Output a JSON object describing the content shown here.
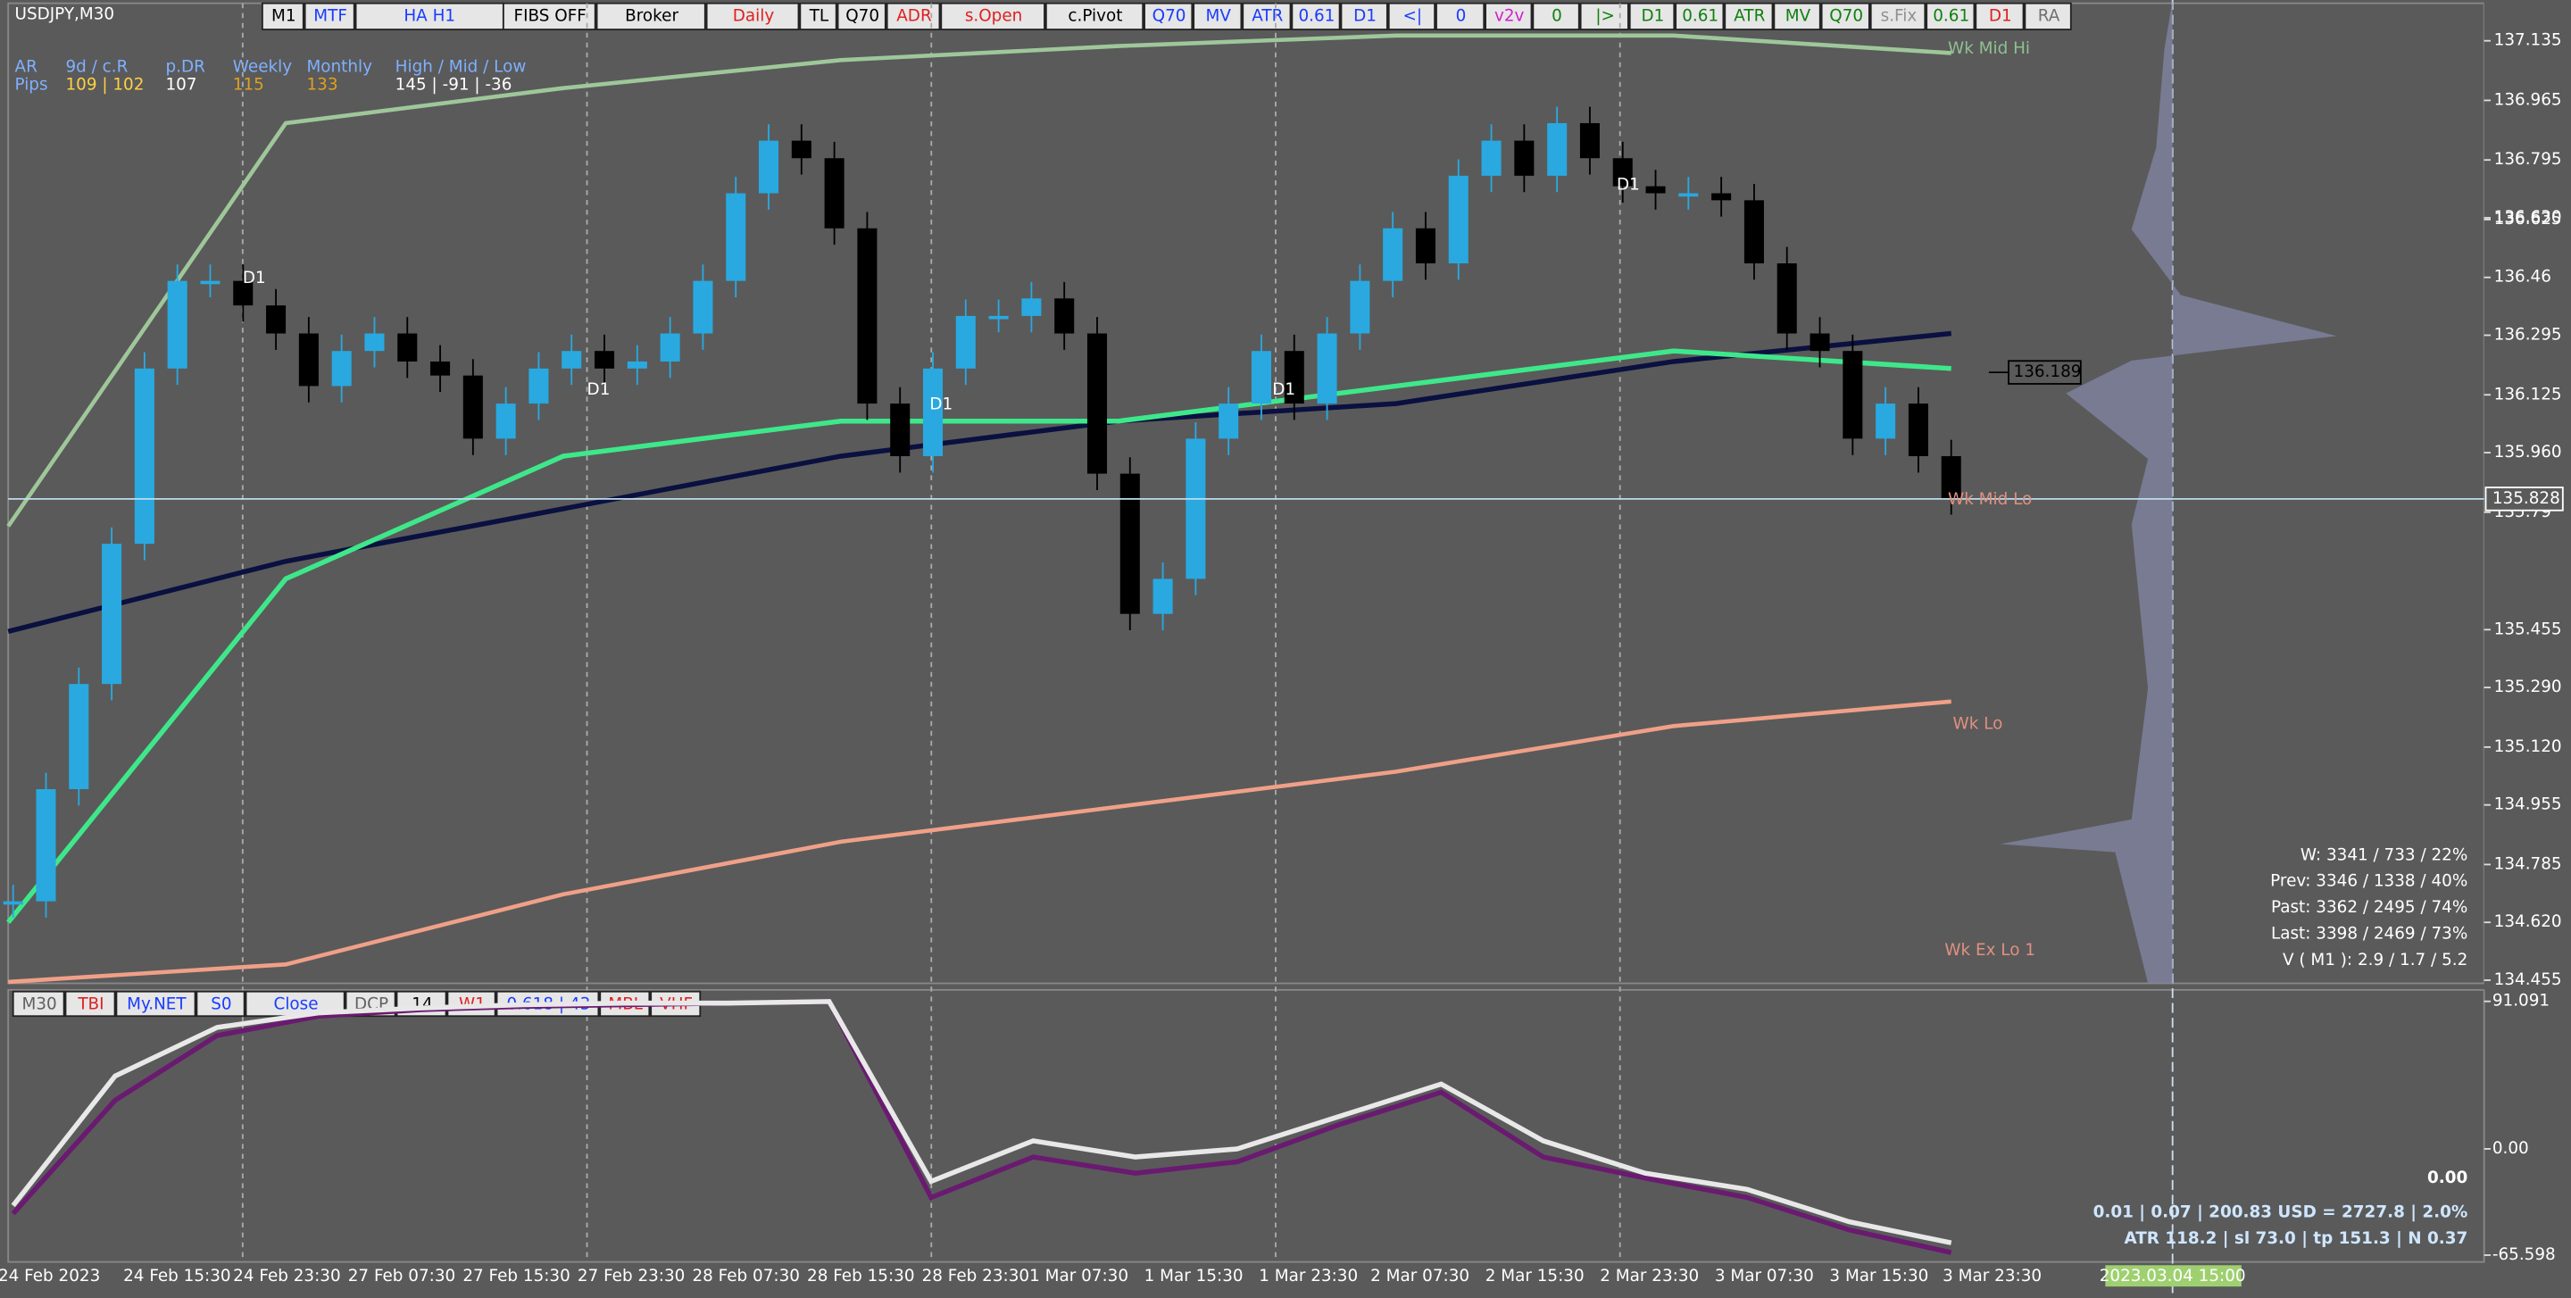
{
  "symbol": "USDJPY,M30",
  "toolbar": [
    {
      "label": "M1",
      "color": "#000000"
    },
    {
      "label": "MTF",
      "color": "#1a3cff"
    },
    {
      "label": "HA H1",
      "color": "#1a3cff"
    },
    {
      "label": "FIBS OFF",
      "color": "#000000"
    },
    {
      "label": "Broker",
      "color": "#000000"
    },
    {
      "label": "Daily",
      "color": "#e02020"
    },
    {
      "label": "TL",
      "color": "#000000"
    },
    {
      "label": "Q70",
      "color": "#000000"
    },
    {
      "label": "ADR",
      "color": "#e02020"
    },
    {
      "label": "s.Open",
      "color": "#e02020"
    },
    {
      "label": "c.Pivot",
      "color": "#000000"
    },
    {
      "label": "Q70",
      "color": "#1a3cff"
    },
    {
      "label": "MV",
      "color": "#1a3cff"
    },
    {
      "label": "ATR",
      "color": "#1a3cff"
    },
    {
      "label": "0.61",
      "color": "#1a3cff"
    },
    {
      "label": "D1",
      "color": "#1a3cff"
    },
    {
      "label": "<|",
      "color": "#1a3cff"
    },
    {
      "label": "0",
      "color": "#1a3cff"
    },
    {
      "label": "v2v",
      "color": "#d020d0"
    },
    {
      "label": "0",
      "color": "#108010"
    },
    {
      "label": "|>",
      "color": "#108010"
    },
    {
      "label": "D1",
      "color": "#108010"
    },
    {
      "label": "0.61",
      "color": "#108010"
    },
    {
      "label": "ATR",
      "color": "#108010"
    },
    {
      "label": "MV",
      "color": "#108010"
    },
    {
      "label": "Q70",
      "color": "#108010"
    },
    {
      "label": "s.Fix",
      "color": "#909090"
    },
    {
      "label": "0.61",
      "color": "#108010"
    },
    {
      "label": "D1",
      "color": "#e02020"
    },
    {
      "label": "RA",
      "color": "#707070"
    }
  ],
  "info": {
    "header": [
      "AR",
      "9d / c.R",
      "p.DR",
      "Weekly",
      "Monthly",
      "High / Mid / Low"
    ],
    "row": [
      "Pips",
      "109 | 102",
      "107",
      "115",
      "133",
      "145 | -91 | -36"
    ]
  },
  "price_chart": {
    "ylim": [
      134.446,
      137.242
    ],
    "yticks": [
      137.135,
      136.965,
      136.795,
      {
        "value": 136.63,
        "label": "136.630"
      },
      136.46,
      136.295,
      136.125,
      {
        "value": 135.96,
        "label": "135.960"
      },
      135.79,
      136.625,
      135.455,
      {
        "value": 135.29,
        "label": "135.290"
      },
      {
        "value": 135.12,
        "label": "135.120"
      },
      134.955,
      134.785,
      {
        "value": 134.62,
        "label": "134.620"
      },
      134.455
    ],
    "close": [
      134.68,
      135.0,
      135.3,
      135.7,
      136.2,
      136.45,
      136.45,
      136.38,
      136.3,
      136.15,
      136.25,
      136.3,
      136.22,
      136.18,
      136.0,
      136.1,
      136.2,
      136.25,
      136.2,
      136.22,
      136.3,
      136.45,
      136.7,
      136.85,
      136.8,
      136.6,
      136.1,
      135.95,
      136.2,
      136.35,
      136.35,
      136.4,
      136.3,
      135.9,
      135.5,
      135.6,
      136.0,
      136.1,
      136.25,
      136.1,
      136.3,
      136.45,
      136.6,
      136.5,
      136.75,
      136.85,
      136.75,
      136.9,
      136.8,
      136.72,
      136.7,
      136.7,
      136.68,
      136.5,
      136.3,
      136.25,
      136.0,
      136.1,
      135.95,
      135.83
    ],
    "lines": [
      {
        "color": "#9fc79a",
        "values": [
          135.75,
          136.9,
          137.0,
          137.08,
          137.12,
          137.15,
          137.15,
          137.1
        ]
      },
      {
        "color": "#f0a088",
        "values": [
          134.45,
          134.5,
          134.7,
          134.85,
          134.95,
          135.05,
          135.18,
          135.25
        ]
      },
      {
        "color": "#0a1040",
        "values": [
          135.45,
          135.65,
          135.8,
          135.95,
          136.05,
          136.1,
          136.22,
          136.3
        ]
      },
      {
        "color": "#3ee88a",
        "values": [
          134.62,
          135.6,
          135.95,
          136.05,
          136.05,
          136.15,
          136.25,
          136.2
        ]
      }
    ],
    "current_price": 135.828,
    "marker_price": 136.189,
    "level_labels": [
      "Wk Mid Hi",
      "Wk Mid Lo",
      "Wk Lo",
      "Wk Ex Lo 1"
    ],
    "d1_label": "D1",
    "stats": [
      "W: 3341 / 733 / 22%",
      "Prev: 3346 / 1338 / 40%",
      "Past: 3362 / 2495 / 74%",
      "Last: 3398 / 2469 / 73%",
      "V ( M1 ): 2.9 / 1.7 / 5.2"
    ]
  },
  "oscillator": {
    "toolbar": [
      {
        "label": "M30",
        "color": "#606060"
      },
      {
        "label": "TBI",
        "color": "#e02020"
      },
      {
        "label": "My.NET",
        "color": "#1a3cff"
      },
      {
        "label": "S0",
        "color": "#1a3cff"
      },
      {
        "label": "Close",
        "color": "#1a3cff"
      },
      {
        "label": "DCP",
        "color": "#606060"
      },
      {
        "label": "14",
        "color": "#000000"
      },
      {
        "label": "W1",
        "color": "#e02020"
      },
      {
        "label": "0.618 | 43",
        "color": "#1a3cff"
      },
      {
        "label": "MBL",
        "color": "#e02020"
      },
      {
        "label": "VHF",
        "color": "#e02020"
      }
    ],
    "ylim": [
      -69.8,
      97.16
    ],
    "yticks": [
      91.091,
      {
        "value": 0,
        "label": "0.00"
      },
      -65.598
    ],
    "series": [
      {
        "color": "#e8e8e8",
        "values": [
          -35,
          45,
          75,
          84,
          87,
          89,
          90,
          90,
          91,
          -20,
          5,
          -5,
          0,
          20,
          40,
          5,
          -15,
          -25,
          -45,
          -58
        ]
      },
      {
        "color": "#6a1a70",
        "values": [
          -40,
          30,
          70,
          82,
          86,
          88,
          89,
          90,
          91,
          -30,
          -5,
          -15,
          -8,
          15,
          35,
          -5,
          -18,
          -30,
          -50,
          -64
        ]
      }
    ],
    "big_value": "0.00",
    "line1": "0.01  |  0.07  |  200.83 USD = 2727.8  |  2.0%",
    "line2": "ATR 118.2  |  sl 73.0  |  tp 151.3  |  N 0.37"
  },
  "x_labels": [
    "24 Feb 2023",
    "24 Feb 15:30",
    "24 Feb 23:30",
    "27 Feb 07:30",
    "27 Feb 15:30",
    "27 Feb 23:30",
    "28 Feb 07:30",
    "28 Feb 15:30",
    "28 Feb 23:30",
    "1 Mar 07:30",
    "1 Mar 15:30",
    "1 Mar 23:30",
    "2 Mar 07:30",
    "2 Mar 15:30",
    "2 Mar 23:30",
    "3 Mar 07:30",
    "3 Mar 15:30",
    "3 Mar 23:30"
  ],
  "cursor_time": "2023.03.04 15:00"
}
